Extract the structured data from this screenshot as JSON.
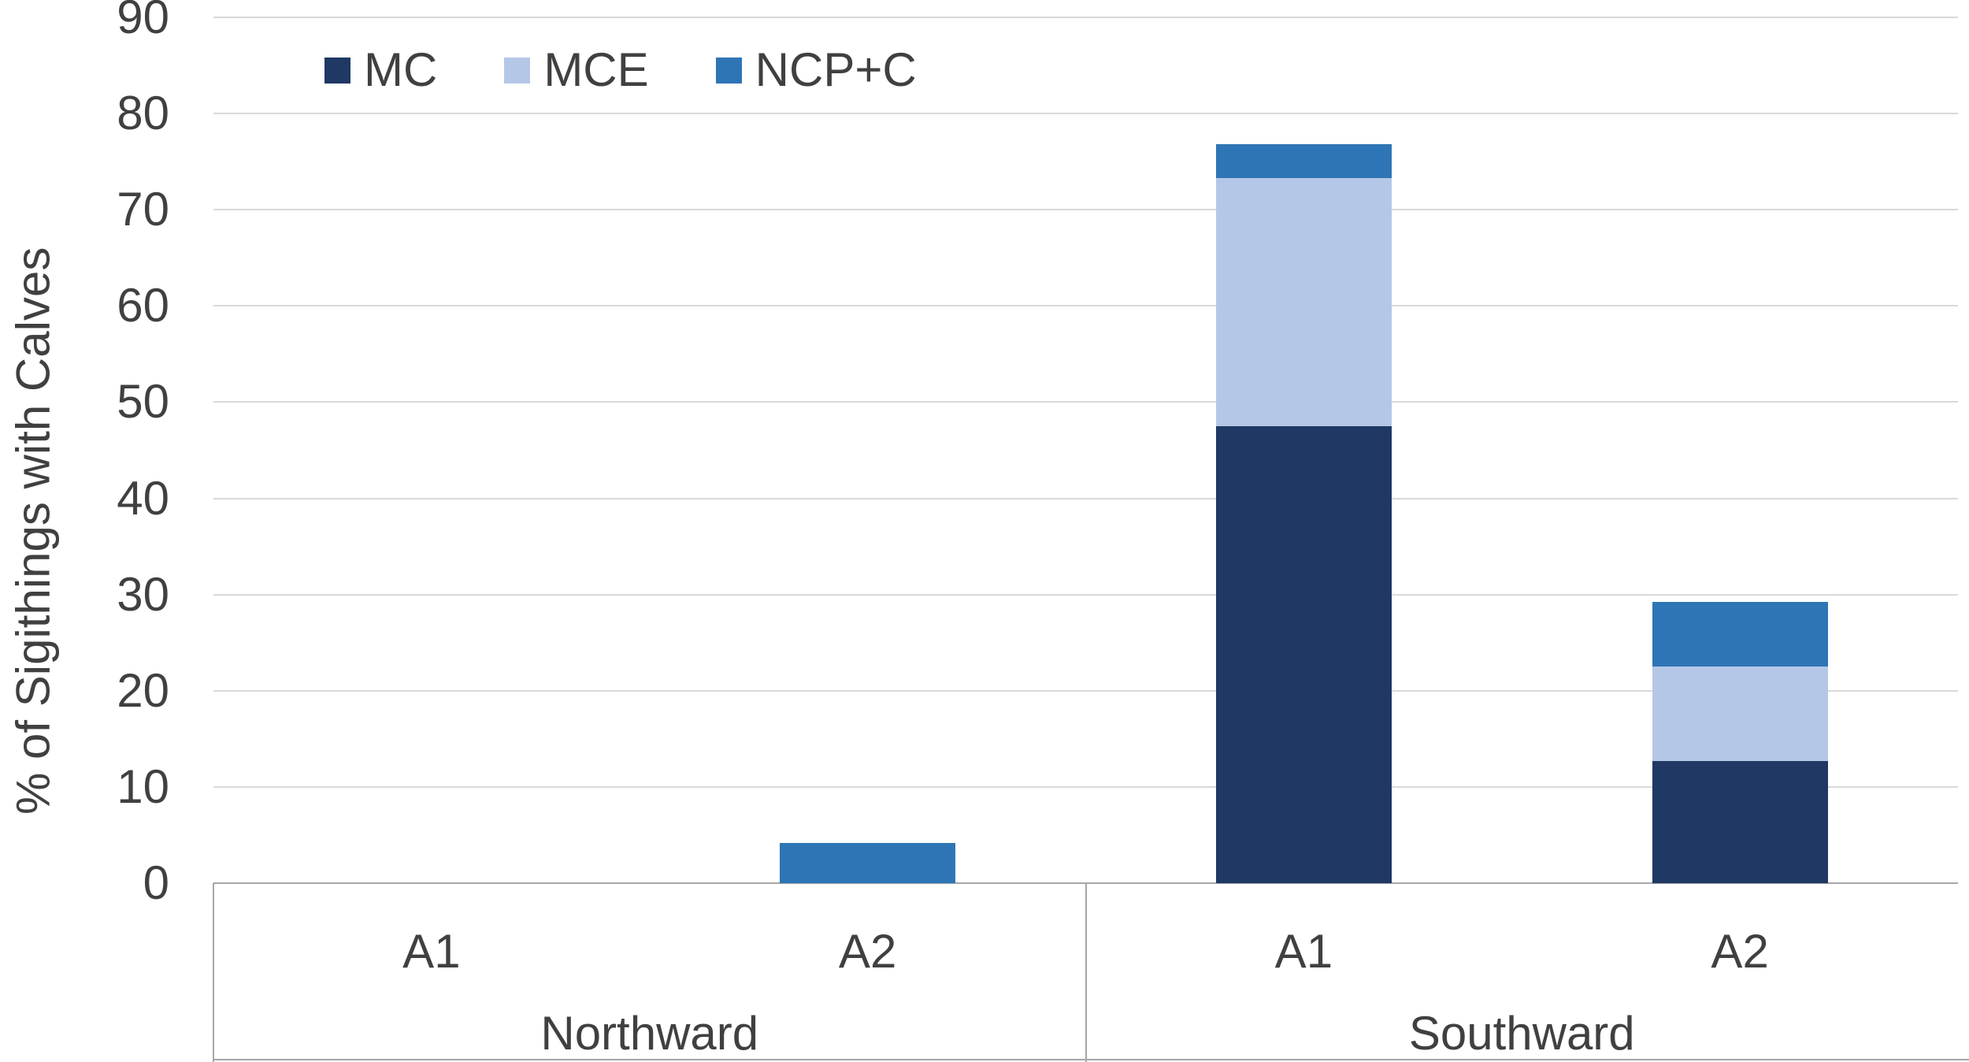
{
  "chart_data": {
    "type": "bar",
    "stacked": true,
    "title": "",
    "ylabel": "% of Sigithings with Calves",
    "xlabel": "",
    "ylim": [
      0,
      90
    ],
    "ytick_step": 10,
    "yticks": [
      0,
      10,
      20,
      30,
      40,
      50,
      60,
      70,
      80,
      90
    ],
    "grid": true,
    "legend_position": "top-left",
    "groups": [
      {
        "label": "Northward",
        "categories": [
          "A1",
          "A2"
        ]
      },
      {
        "label": "Southward",
        "categories": [
          "A1",
          "A2"
        ]
      }
    ],
    "categories": [
      "A1",
      "A2",
      "A1",
      "A2"
    ],
    "series": [
      {
        "name": "MC",
        "color": "#1F3864",
        "values": [
          0,
          0,
          47.5,
          12.7
        ]
      },
      {
        "name": "MCE",
        "color": "#B4C7E7",
        "values": [
          0,
          0,
          25.8,
          9.8
        ]
      },
      {
        "name": "NCP+C",
        "color": "#2E75B6",
        "values": [
          0,
          4.2,
          3.5,
          6.7
        ]
      }
    ],
    "stack_totals": [
      0,
      4.2,
      76.8,
      29.2
    ]
  },
  "colors": {
    "gridline": "#D9D9D9",
    "axis": "#A6A6A6",
    "text": "#404040",
    "background": "#FFFFFF"
  }
}
